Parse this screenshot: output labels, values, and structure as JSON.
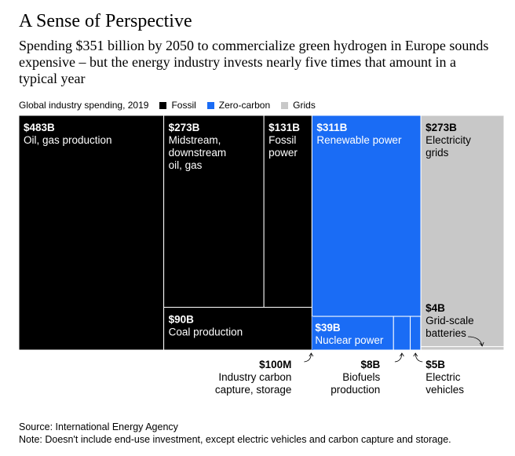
{
  "title": "A Sense of Perspective",
  "subtitle": "Spending $351 billion by 2050 to commercialize green hydrogen in Europe sounds expensive – but the energy industry invests nearly five times that amount in a typical year",
  "legend": {
    "caption": "Global industry spending, 2019",
    "items": [
      {
        "label": "Fossil",
        "color": "#000000"
      },
      {
        "label": "Zero-carbon",
        "color": "#1a6cf5"
      },
      {
        "label": "Grids",
        "color": "#c8c8c8"
      }
    ]
  },
  "chart_data": {
    "type": "treemap",
    "unit": "$B",
    "groups": [
      {
        "name": "Fossil",
        "color": "#000000",
        "items": [
          {
            "value_label": "$483B",
            "label": [
              "Oil, gas production"
            ],
            "value": 483
          },
          {
            "value_label": "$273B",
            "label": [
              "Midstream,",
              "downstream",
              "oil, gas"
            ],
            "value": 273
          },
          {
            "value_label": "$131B",
            "label": [
              "Fossil",
              "power"
            ],
            "value": 131
          },
          {
            "value_label": "$90B",
            "label": [
              "Coal production"
            ],
            "value": 90
          }
        ]
      },
      {
        "name": "Zero-carbon",
        "color": "#1a6cf5",
        "items": [
          {
            "value_label": "$311B",
            "label": [
              "Renewable power"
            ],
            "value": 311
          },
          {
            "value_label": "$39B",
            "label": [
              "Nuclear power"
            ],
            "value": 39
          },
          {
            "value_label": "$8B",
            "label": [
              "Biofuels",
              "production"
            ],
            "value": 8
          },
          {
            "value_label": "$5B",
            "label": [
              "Electric",
              "vehicles"
            ],
            "value": 5
          },
          {
            "value_label": "$100M",
            "label": [
              "Industry carbon",
              "capture, storage"
            ],
            "value": 0.1
          }
        ]
      },
      {
        "name": "Grids",
        "color": "#c8c8c8",
        "items": [
          {
            "value_label": "$273B",
            "label": [
              "Electricity",
              "grids"
            ],
            "value": 273
          },
          {
            "value_label": "$4B",
            "label": [
              "Grid-scale",
              "batteries"
            ],
            "value": 4
          }
        ]
      }
    ]
  },
  "source": "Source: International Energy Agency",
  "note": "Note: Doesn't include end-use investment, except electric vehicles and carbon capture and storage."
}
